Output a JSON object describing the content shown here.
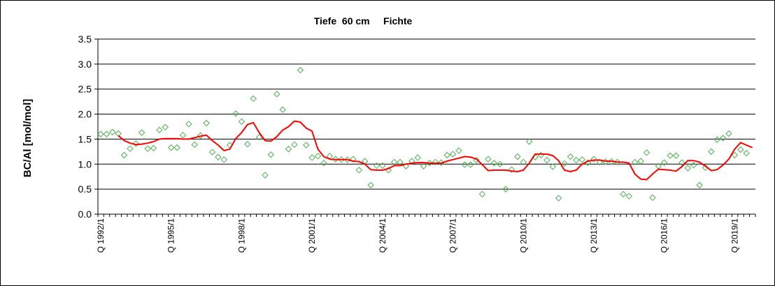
{
  "chart_data": {
    "type": "scatter",
    "title": "Tiefe  60 cm     Fichte",
    "ylabel": "BC/Al [mol/mol]",
    "xlabel": "",
    "ylim": [
      0,
      3.5
    ],
    "yticks": [
      "0.0",
      "0.5",
      "1.0",
      "1.5",
      "2.0",
      "2.5",
      "3.0",
      "3.5"
    ],
    "x_tick_labels": [
      "Q 1992/1",
      "Q 1995/1",
      "Q 1998/1",
      "Q 2001/1",
      "Q 2004/1",
      "Q 2007/1",
      "Q 2010/1",
      "Q 2013/1",
      "Q 2016/1",
      "Q 2019/1"
    ],
    "x_tick_quarters": [
      0,
      12,
      24,
      36,
      48,
      60,
      72,
      84,
      96,
      108
    ],
    "x_range_quarters": [
      0,
      112
    ],
    "grid": "horizontal",
    "legend": "none",
    "colors": {
      "points": "#4caf50",
      "trend": "#ff0000",
      "grid": "#000000",
      "plot_bg": "#ffffff"
    },
    "series": [
      {
        "kind": "points",
        "marker": "diamond",
        "values": [
          1.6,
          1.6,
          1.64,
          1.61,
          1.18,
          1.31,
          1.41,
          1.63,
          1.31,
          1.32,
          1.68,
          1.74,
          1.33,
          1.33,
          1.58,
          1.8,
          1.39,
          1.57,
          1.82,
          1.24,
          1.14,
          1.09,
          1.38,
          2.01,
          1.85,
          1.4,
          2.31,
          1.54,
          0.78,
          1.19,
          2.4,
          2.09,
          1.3,
          1.39,
          2.88,
          1.38,
          1.13,
          1.16,
          1.02,
          1.16,
          1.1,
          1.09,
          1.09,
          1.1,
          0.88,
          1.06,
          0.58,
          0.97,
          0.97,
          0.88,
          1.04,
          1.04,
          0.96,
          1.06,
          1.13,
          0.96,
          1.02,
          1.04,
          1.03,
          1.18,
          1.2,
          1.27,
          0.99,
          0.99,
          1.08,
          0.4,
          1.1,
          1.02,
          1.0,
          0.5,
          0.89,
          1.15,
          1.04,
          1.45,
          1.14,
          1.18,
          1.08,
          0.95,
          0.32,
          1.01,
          1.15,
          1.08,
          1.09,
          1.03,
          1.1,
          1.04,
          1.05,
          1.05,
          1.04,
          0.4,
          0.36,
          1.04,
          1.06,
          1.23,
          0.33,
          0.96,
          1.03,
          1.17,
          1.17,
          1.03,
          0.92,
          0.98,
          0.58,
          0.93,
          1.25,
          1.49,
          1.52,
          1.61,
          1.18,
          1.29,
          1.22
        ]
      },
      {
        "kind": "trend",
        "start_quarter": 3,
        "values": [
          1.57,
          1.47,
          1.42,
          1.39,
          1.4,
          1.42,
          1.45,
          1.5,
          1.51,
          1.51,
          1.51,
          1.5,
          1.5,
          1.53,
          1.56,
          1.58,
          1.47,
          1.38,
          1.27,
          1.3,
          1.51,
          1.63,
          1.79,
          1.83,
          1.63,
          1.47,
          1.46,
          1.55,
          1.68,
          1.75,
          1.86,
          1.84,
          1.72,
          1.66,
          1.3,
          1.15,
          1.1,
          1.09,
          1.09,
          1.09,
          1.06,
          1.05,
          1.0,
          0.89,
          0.88,
          0.88,
          0.91,
          0.97,
          0.97,
          1.0,
          1.02,
          1.03,
          1.03,
          1.02,
          1.02,
          1.02,
          1.06,
          1.09,
          1.12,
          1.15,
          1.14,
          1.1,
          0.99,
          0.87,
          0.88,
          0.88,
          0.88,
          0.86,
          0.85,
          0.88,
          1.02,
          1.2,
          1.2,
          1.2,
          1.17,
          1.07,
          0.88,
          0.85,
          0.88,
          1.0,
          1.06,
          1.08,
          1.08,
          1.06,
          1.06,
          1.04,
          1.04,
          1.02,
          0.8,
          0.7,
          0.69,
          0.8,
          0.9,
          0.89,
          0.88,
          0.86,
          0.95,
          1.07,
          1.07,
          1.04,
          0.96,
          0.87,
          0.89,
          0.98,
          1.1,
          1.3,
          1.43,
          1.38,
          1.33
        ]
      }
    ]
  }
}
